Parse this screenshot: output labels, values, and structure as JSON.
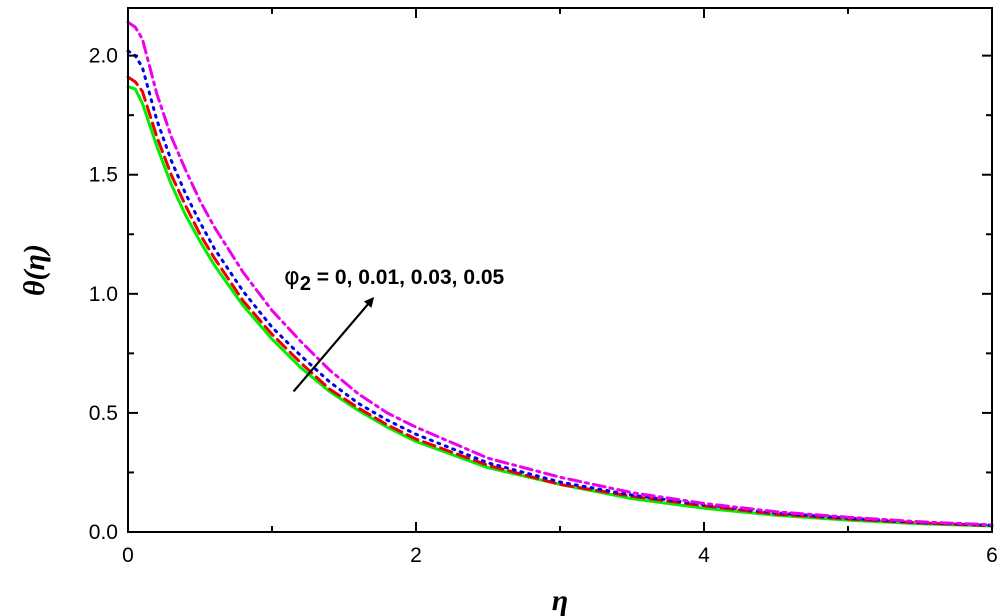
{
  "chart_data": {
    "type": "line",
    "title": "",
    "xlabel": "η",
    "ylabel": "θ(η)",
    "xlim": [
      0,
      6
    ],
    "ylim": [
      0,
      2.2
    ],
    "x_ticks": [
      0,
      2,
      4,
      6
    ],
    "y_ticks": [
      0.0,
      0.5,
      1.0,
      1.5,
      2.0
    ],
    "x_tick_labels": [
      "0",
      "2",
      "4",
      "6"
    ],
    "y_tick_labels": [
      "0.0",
      "0.5",
      "1.0",
      "1.5",
      "2.0"
    ],
    "grid": false,
    "legend": "none",
    "annotation": {
      "symbol": "φ",
      "subscript": "2",
      "text": " = 0, 0.01, 0.03, 0.05",
      "arrow_from": [
        1.15,
        0.59
      ],
      "arrow_to": [
        1.7,
        0.98
      ]
    },
    "series": [
      {
        "color": "#00ee00",
        "dash": "solid",
        "x": [
          0,
          0.05,
          0.1,
          0.2,
          0.3,
          0.4,
          0.5,
          0.6,
          0.8,
          1.0,
          1.2,
          1.4,
          1.6,
          1.8,
          2.0,
          2.5,
          3.0,
          3.5,
          4.0,
          4.5,
          5.0,
          5.5,
          6.0
        ],
        "y": [
          1.87,
          1.86,
          1.8,
          1.62,
          1.46,
          1.33,
          1.22,
          1.12,
          0.95,
          0.81,
          0.69,
          0.59,
          0.51,
          0.44,
          0.38,
          0.27,
          0.2,
          0.14,
          0.1,
          0.07,
          0.05,
          0.035,
          0.025
        ]
      },
      {
        "color": "#ee0000",
        "dash": "dashed",
        "x": [
          0,
          0.05,
          0.1,
          0.2,
          0.3,
          0.4,
          0.5,
          0.6,
          0.8,
          1.0,
          1.2,
          1.4,
          1.6,
          1.8,
          2.0,
          2.5,
          3.0,
          3.5,
          4.0,
          4.5,
          5.0,
          5.5,
          6.0
        ],
        "y": [
          1.91,
          1.89,
          1.85,
          1.66,
          1.5,
          1.37,
          1.25,
          1.15,
          0.97,
          0.83,
          0.71,
          0.6,
          0.52,
          0.45,
          0.39,
          0.28,
          0.2,
          0.15,
          0.11,
          0.075,
          0.055,
          0.038,
          0.027
        ]
      },
      {
        "color": "#0000ee",
        "dash": "dotted",
        "x": [
          0,
          0.05,
          0.1,
          0.2,
          0.3,
          0.4,
          0.5,
          0.6,
          0.8,
          1.0,
          1.2,
          1.4,
          1.6,
          1.8,
          2.0,
          2.5,
          3.0,
          3.5,
          4.0,
          4.5,
          5.0,
          5.5,
          6.0
        ],
        "y": [
          2.02,
          2.0,
          1.95,
          1.73,
          1.56,
          1.42,
          1.3,
          1.19,
          1.01,
          0.86,
          0.74,
          0.63,
          0.54,
          0.47,
          0.41,
          0.29,
          0.21,
          0.155,
          0.115,
          0.08,
          0.058,
          0.04,
          0.028
        ]
      },
      {
        "color": "#ee00ee",
        "dash": "dash-dot",
        "x": [
          0,
          0.05,
          0.1,
          0.2,
          0.3,
          0.4,
          0.5,
          0.6,
          0.8,
          1.0,
          1.2,
          1.4,
          1.6,
          1.8,
          2.0,
          2.5,
          3.0,
          3.5,
          4.0,
          4.5,
          5.0,
          5.5,
          6.0
        ],
        "y": [
          2.14,
          2.12,
          2.07,
          1.84,
          1.66,
          1.52,
          1.39,
          1.28,
          1.09,
          0.93,
          0.8,
          0.68,
          0.58,
          0.5,
          0.44,
          0.31,
          0.23,
          0.165,
          0.12,
          0.085,
          0.062,
          0.043,
          0.03
        ]
      }
    ]
  }
}
